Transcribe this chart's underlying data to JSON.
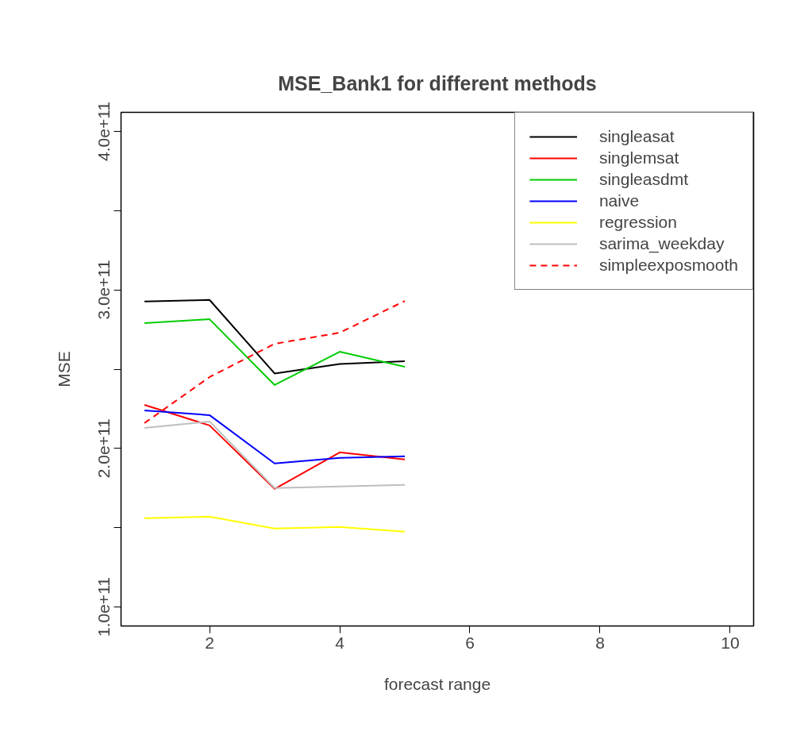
{
  "chart_data": {
    "type": "line",
    "title": "MSE_Bank1 for different methods",
    "xlabel": "forecast range",
    "ylabel": "MSE",
    "x": [
      1,
      2,
      3,
      4,
      5
    ],
    "series": [
      {
        "name": "singleasat",
        "color": "#000000",
        "values": [
          292700000000.0,
          293700000000.0,
          247300000000.0,
          253300000000.0,
          255000000000.0
        ]
      },
      {
        "name": "singlemsat",
        "color": "#ff0000",
        "values": [
          227500000000.0,
          214500000000.0,
          174500000000.0,
          197500000000.0,
          193000000000.0
        ]
      },
      {
        "name": "singleasdmt",
        "color": "#00cd00",
        "values": [
          279000000000.0,
          281500000000.0,
          240000000000.0,
          261000000000.0,
          251500000000.0
        ]
      },
      {
        "name": "naive",
        "color": "#0000ff",
        "values": [
          224000000000.0,
          221000000000.0,
          190500000000.0,
          194000000000.0,
          195000000000.0
        ]
      },
      {
        "name": "regression",
        "color": "#ffff00",
        "values": [
          156000000000.0,
          157000000000.0,
          149500000000.0,
          150500000000.0,
          147500000000.0
        ]
      },
      {
        "name": "sarima_weekday",
        "color": "#bebebe",
        "values": [
          213000000000.0,
          217000000000.0,
          175000000000.0,
          176000000000.0,
          177000000000.0
        ]
      },
      {
        "name": "simpleexposmooth",
        "color": "#ff0000",
        "line_style": "dashed",
        "values": [
          216000000000.0,
          245000000000.0,
          266000000000.0,
          273000000000.0,
          293000000000.0
        ]
      }
    ],
    "xlim": [
      0.64,
      10.36
    ],
    "xticks": [
      2,
      4,
      6,
      8,
      10
    ],
    "ylim": [
      88000000000.0,
      412000000000.0
    ],
    "yticks": [
      {
        "value": 100000000000.0,
        "label": "1.0e+11"
      },
      {
        "value": 150000000000.0,
        "label": null
      },
      {
        "value": 200000000000.0,
        "label": "2.0e+11"
      },
      {
        "value": 250000000000.0,
        "label": null
      },
      {
        "value": 300000000000.0,
        "label": "3.0e+11"
      },
      {
        "value": 350000000000.0,
        "label": null
      },
      {
        "value": 400000000000.0,
        "label": "4.0e+11"
      }
    ],
    "grid": false,
    "legend": "top right",
    "marker": "none",
    "line_style": "solid"
  }
}
